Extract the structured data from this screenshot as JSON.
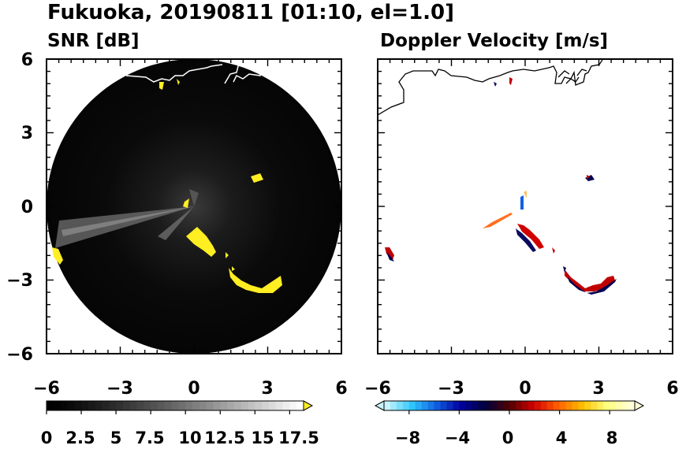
{
  "figure": {
    "title": "Fukuoka, 20190811 [01:10, el=1.0]"
  },
  "chart_data": [
    {
      "type": "heatmap",
      "title": "SNR [dB]",
      "xlim": [
        -6,
        6
      ],
      "ylim": [
        -6,
        6
      ],
      "xticks": [
        "−6",
        "−3",
        "0",
        "3",
        "6"
      ],
      "yticks": [
        "6",
        "3",
        "0",
        "−3",
        "−6"
      ],
      "xtick_values": [
        -6,
        -3,
        0,
        3,
        6
      ],
      "ytick_values": [
        6,
        3,
        0,
        -3,
        -6
      ],
      "range_ring_radius": 6,
      "colorbar": {
        "min": 0,
        "max": 18.5,
        "extend": "max",
        "tick_labels": [
          "0",
          "2.5",
          "5",
          "7.5",
          "10",
          "12.5",
          "15",
          "17.5"
        ],
        "tick_values": [
          0,
          2.5,
          5,
          7.5,
          10,
          12.5,
          15,
          17.5
        ],
        "colors": [
          "#000000",
          "#ffffff"
        ],
        "over_color": "#ffee22"
      },
      "echo_color": "#ffee22",
      "background_color": "#000000"
    },
    {
      "type": "heatmap",
      "title": "Doppler Velocity [m/s]",
      "xlim": [
        -6,
        6
      ],
      "ylim": [
        -6,
        6
      ],
      "xticks": [
        "−6",
        "−3",
        "0",
        "3",
        "6"
      ],
      "yticks": [
        "6",
        "3",
        "0",
        "−3",
        "−6"
      ],
      "xtick_values": [
        -6,
        -3,
        0,
        3,
        6
      ],
      "ytick_values": [
        6,
        3,
        0,
        -3,
        -6
      ],
      "colorbar": {
        "min": -10,
        "max": 10,
        "extend": "both",
        "tick_labels": [
          "−8",
          "−4",
          "0",
          "4",
          "8"
        ],
        "tick_values": [
          -8,
          -4,
          0,
          4,
          8
        ],
        "colors": [
          "#c8f4ff",
          "#30c8ff",
          "#1060e0",
          "#0000a0",
          "#000040",
          "#500000",
          "#d00000",
          "#ff6000",
          "#ffc000",
          "#ffff80",
          "#ffffd8"
        ]
      }
    }
  ]
}
